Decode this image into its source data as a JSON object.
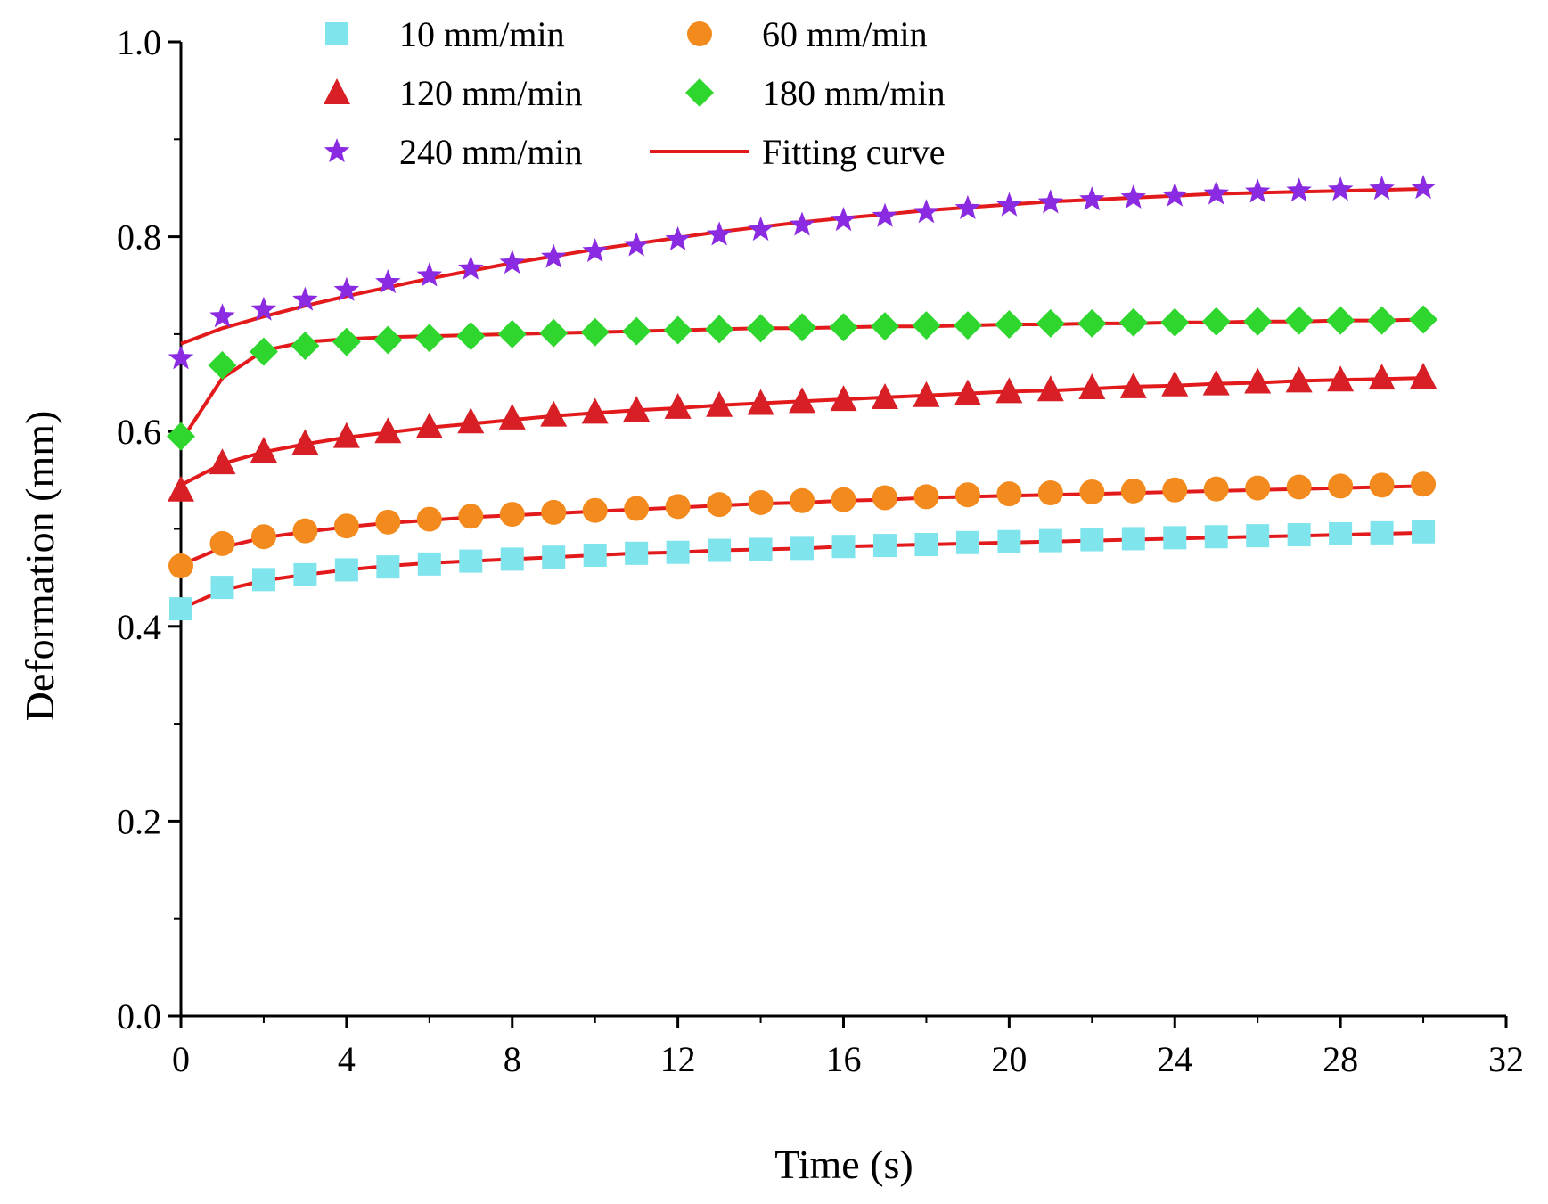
{
  "chart_data": {
    "type": "scatter",
    "title": "",
    "xlabel": "Time (s)",
    "ylabel": "Deformation (mm)",
    "xlim": [
      0,
      32
    ],
    "ylim": [
      0.0,
      1.0
    ],
    "x_ticks": [
      0,
      4,
      8,
      12,
      16,
      20,
      24,
      28,
      32
    ],
    "x_tick_labels": [
      "0",
      "4",
      "8",
      "12",
      "16",
      "20",
      "24",
      "28",
      "32"
    ],
    "y_ticks": [
      0.0,
      0.2,
      0.4,
      0.6,
      0.8,
      1.0
    ],
    "y_tick_labels": [
      "0.0",
      "0.2",
      "0.4",
      "0.6",
      "0.8",
      "1.0"
    ],
    "legend_position": "top",
    "x": [
      0,
      1,
      2,
      3,
      4,
      5,
      6,
      7,
      8,
      9,
      10,
      11,
      12,
      13,
      14,
      15,
      16,
      17,
      18,
      19,
      20,
      21,
      22,
      23,
      24,
      25,
      26,
      27,
      28,
      29,
      30
    ],
    "series": [
      {
        "name": "10 mm/min",
        "marker": "square",
        "color": "#7fe4ec",
        "values": [
          0.418,
          0.44,
          0.448,
          0.453,
          0.458,
          0.461,
          0.464,
          0.467,
          0.469,
          0.471,
          0.473,
          0.475,
          0.476,
          0.478,
          0.479,
          0.48,
          0.482,
          0.483,
          0.484,
          0.486,
          0.487,
          0.488,
          0.489,
          0.49,
          0.491,
          0.492,
          0.493,
          0.494,
          0.495,
          0.496,
          0.497
        ]
      },
      {
        "name": "60 mm/min",
        "marker": "circle",
        "color": "#f28a1e",
        "values": [
          0.462,
          0.485,
          0.492,
          0.498,
          0.503,
          0.507,
          0.51,
          0.513,
          0.515,
          0.517,
          0.519,
          0.521,
          0.523,
          0.525,
          0.527,
          0.529,
          0.53,
          0.532,
          0.533,
          0.535,
          0.536,
          0.537,
          0.538,
          0.539,
          0.54,
          0.541,
          0.542,
          0.543,
          0.544,
          0.545,
          0.546
        ]
      },
      {
        "name": "120 mm/min",
        "marker": "triangle",
        "color": "#d81f26",
        "values": [
          0.54,
          0.568,
          0.58,
          0.588,
          0.595,
          0.6,
          0.605,
          0.61,
          0.614,
          0.617,
          0.62,
          0.622,
          0.625,
          0.627,
          0.629,
          0.631,
          0.633,
          0.635,
          0.637,
          0.639,
          0.641,
          0.643,
          0.645,
          0.646,
          0.648,
          0.649,
          0.651,
          0.652,
          0.653,
          0.655,
          0.656
        ]
      },
      {
        "name": "180 mm/min",
        "marker": "diamond",
        "color": "#2ed62e",
        "values": [
          0.595,
          0.668,
          0.682,
          0.688,
          0.692,
          0.694,
          0.696,
          0.698,
          0.7,
          0.701,
          0.702,
          0.703,
          0.704,
          0.705,
          0.706,
          0.707,
          0.707,
          0.708,
          0.709,
          0.709,
          0.71,
          0.711,
          0.711,
          0.712,
          0.712,
          0.713,
          0.713,
          0.714,
          0.714,
          0.714,
          0.715
        ]
      },
      {
        "name": "240 mm/min",
        "marker": "star",
        "color": "#8a2be2",
        "values": [
          0.675,
          0.718,
          0.725,
          0.735,
          0.745,
          0.753,
          0.76,
          0.767,
          0.773,
          0.779,
          0.785,
          0.791,
          0.797,
          0.802,
          0.807,
          0.812,
          0.817,
          0.821,
          0.825,
          0.829,
          0.832,
          0.835,
          0.838,
          0.84,
          0.842,
          0.844,
          0.846,
          0.847,
          0.848,
          0.849,
          0.85
        ]
      }
    ],
    "fitting_curves": {
      "name": "Fitting curve",
      "color": "#e31a1c",
      "curves": [
        {
          "for": "10 mm/min",
          "values": [
            0.418,
            0.437,
            0.447,
            0.453,
            0.458,
            0.462,
            0.465,
            0.467,
            0.469,
            0.471,
            0.473,
            0.475,
            0.476,
            0.478,
            0.479,
            0.48,
            0.482,
            0.483,
            0.484,
            0.485,
            0.486,
            0.487,
            0.488,
            0.489,
            0.49,
            0.491,
            0.492,
            0.493,
            0.494,
            0.495,
            0.496
          ]
        },
        {
          "for": "60 mm/min",
          "values": [
            0.463,
            0.481,
            0.491,
            0.497,
            0.502,
            0.506,
            0.509,
            0.512,
            0.514,
            0.516,
            0.518,
            0.52,
            0.522,
            0.524,
            0.526,
            0.527,
            0.529,
            0.53,
            0.532,
            0.533,
            0.534,
            0.535,
            0.536,
            0.537,
            0.538,
            0.539,
            0.54,
            0.541,
            0.542,
            0.543,
            0.544
          ]
        },
        {
          "for": "120 mm/min",
          "values": [
            0.545,
            0.567,
            0.579,
            0.587,
            0.594,
            0.599,
            0.604,
            0.608,
            0.612,
            0.616,
            0.619,
            0.622,
            0.624,
            0.627,
            0.629,
            0.631,
            0.633,
            0.635,
            0.637,
            0.639,
            0.641,
            0.642,
            0.644,
            0.646,
            0.647,
            0.649,
            0.65,
            0.652,
            0.653,
            0.654,
            0.655
          ]
        },
        {
          "for": "180 mm/min",
          "values": [
            0.59,
            0.655,
            0.683,
            0.692,
            0.695,
            0.697,
            0.698,
            0.699,
            0.7,
            0.701,
            0.702,
            0.703,
            0.704,
            0.705,
            0.706,
            0.706,
            0.707,
            0.708,
            0.708,
            0.709,
            0.71,
            0.71,
            0.711,
            0.711,
            0.712,
            0.712,
            0.713,
            0.713,
            0.714,
            0.714,
            0.715
          ]
        },
        {
          "for": "240 mm/min",
          "values": [
            0.69,
            0.706,
            0.718,
            0.729,
            0.739,
            0.748,
            0.757,
            0.765,
            0.773,
            0.78,
            0.787,
            0.793,
            0.799,
            0.805,
            0.81,
            0.815,
            0.819,
            0.823,
            0.827,
            0.83,
            0.833,
            0.836,
            0.838,
            0.84,
            0.842,
            0.844,
            0.845,
            0.846,
            0.847,
            0.848,
            0.849
          ]
        }
      ]
    }
  }
}
